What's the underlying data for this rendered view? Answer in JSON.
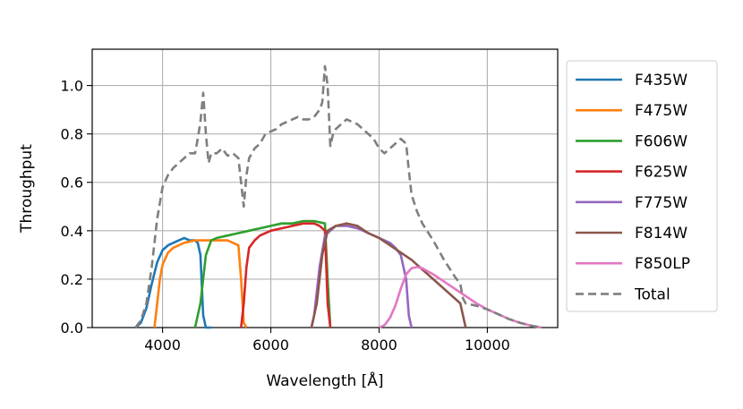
{
  "chart_data": {
    "type": "line",
    "title": "",
    "xlabel": "Wavelength [Å]",
    "ylabel": "Throughput",
    "xlim": [
      2700,
      11300
    ],
    "ylim": [
      0.0,
      1.15
    ],
    "xticks": [
      4000,
      6000,
      8000,
      10000
    ],
    "xtick_labels": [
      "4000",
      "6000",
      "8000",
      "10000"
    ],
    "yticks": [
      0.0,
      0.2,
      0.4,
      0.6,
      0.8,
      1.0
    ],
    "ytick_labels": [
      "0.0",
      "0.2",
      "0.4",
      "0.6",
      "0.8",
      "1.0"
    ],
    "grid": true,
    "legend_position": "right",
    "series": [
      {
        "name": "F435W",
        "color": "#1f77b4",
        "style": "solid",
        "x": [
          3500,
          3600,
          3700,
          3800,
          3900,
          4000,
          4100,
          4200,
          4300,
          4400,
          4500,
          4600,
          4650,
          4700,
          4750,
          4800,
          4900
        ],
        "y": [
          0.0,
          0.02,
          0.08,
          0.18,
          0.27,
          0.32,
          0.34,
          0.35,
          0.36,
          0.37,
          0.36,
          0.36,
          0.35,
          0.3,
          0.05,
          0.0,
          0.0
        ]
      },
      {
        "name": "F475W",
        "color": "#ff7f0e",
        "style": "solid",
        "x": [
          3850,
          3900,
          3950,
          4000,
          4100,
          4200,
          4400,
          4600,
          4800,
          5000,
          5200,
          5300,
          5400,
          5450,
          5500,
          5550
        ],
        "y": [
          0.0,
          0.1,
          0.2,
          0.26,
          0.31,
          0.33,
          0.35,
          0.36,
          0.36,
          0.36,
          0.36,
          0.35,
          0.34,
          0.2,
          0.02,
          0.0
        ]
      },
      {
        "name": "F606W",
        "color": "#2ca02c",
        "style": "solid",
        "x": [
          4600,
          4700,
          4800,
          4900,
          5000,
          5200,
          5400,
          5600,
          5800,
          6000,
          6200,
          6400,
          6600,
          6800,
          7000,
          7050,
          7100
        ],
        "y": [
          0.0,
          0.1,
          0.3,
          0.36,
          0.37,
          0.38,
          0.39,
          0.4,
          0.41,
          0.42,
          0.43,
          0.43,
          0.44,
          0.44,
          0.43,
          0.2,
          0.0
        ]
      },
      {
        "name": "F625W",
        "color": "#d62728",
        "style": "solid",
        "x": [
          5450,
          5500,
          5550,
          5600,
          5700,
          5800,
          6000,
          6200,
          6400,
          6600,
          6800,
          6900,
          7000,
          7050,
          7100
        ],
        "y": [
          0.0,
          0.1,
          0.25,
          0.33,
          0.36,
          0.38,
          0.4,
          0.41,
          0.42,
          0.43,
          0.43,
          0.42,
          0.4,
          0.1,
          0.0
        ]
      },
      {
        "name": "F775W",
        "color": "#9467bd",
        "style": "solid",
        "x": [
          6750,
          6800,
          6900,
          7000,
          7200,
          7400,
          7600,
          7800,
          8000,
          8200,
          8300,
          8400,
          8500,
          8550,
          8600
        ],
        "y": [
          0.0,
          0.05,
          0.25,
          0.38,
          0.42,
          0.42,
          0.41,
          0.39,
          0.37,
          0.35,
          0.33,
          0.3,
          0.2,
          0.05,
          0.0
        ]
      },
      {
        "name": "F814W",
        "color": "#8c564b",
        "style": "solid",
        "x": [
          6750,
          6850,
          6950,
          7050,
          7200,
          7400,
          7600,
          7800,
          8000,
          8200,
          8400,
          8600,
          8800,
          9000,
          9200,
          9400,
          9500,
          9550,
          9600
        ],
        "y": [
          0.0,
          0.1,
          0.3,
          0.4,
          0.42,
          0.43,
          0.42,
          0.39,
          0.37,
          0.34,
          0.31,
          0.28,
          0.24,
          0.2,
          0.16,
          0.12,
          0.1,
          0.05,
          0.0
        ]
      },
      {
        "name": "F850LP",
        "color": "#e377c2",
        "style": "solid",
        "x": [
          8000,
          8100,
          8200,
          8300,
          8400,
          8500,
          8600,
          8700,
          8800,
          9000,
          9200,
          9400,
          9600,
          9800,
          10000,
          10200,
          10400,
          10600,
          10800,
          11000
        ],
        "y": [
          0.0,
          0.01,
          0.04,
          0.09,
          0.16,
          0.22,
          0.245,
          0.25,
          0.245,
          0.22,
          0.19,
          0.16,
          0.13,
          0.1,
          0.075,
          0.055,
          0.035,
          0.02,
          0.008,
          0.0
        ]
      },
      {
        "name": "Total",
        "color": "#7f7f7f",
        "style": "dashed",
        "x": [
          3500,
          3600,
          3700,
          3800,
          3900,
          4000,
          4100,
          4200,
          4300,
          4400,
          4500,
          4600,
          4650,
          4700,
          4750,
          4800,
          4850,
          4900,
          5000,
          5100,
          5200,
          5300,
          5400,
          5450,
          5500,
          5550,
          5600,
          5700,
          5800,
          5900,
          6000,
          6100,
          6200,
          6300,
          6400,
          6500,
          6600,
          6700,
          6800,
          6900,
          6950,
          7000,
          7050,
          7100,
          7150,
          7200,
          7300,
          7400,
          7500,
          7600,
          7700,
          7800,
          7900,
          8000,
          8100,
          8200,
          8300,
          8400,
          8500,
          8550,
          8600,
          8700,
          8800,
          9000,
          9200,
          9400,
          9500,
          9550,
          9600,
          9800,
          10000,
          10200,
          10400,
          10600,
          10800,
          11000
        ],
        "y": [
          0.0,
          0.03,
          0.1,
          0.25,
          0.45,
          0.58,
          0.63,
          0.66,
          0.68,
          0.7,
          0.72,
          0.72,
          0.78,
          0.85,
          0.97,
          0.8,
          0.68,
          0.72,
          0.72,
          0.74,
          0.71,
          0.72,
          0.7,
          0.6,
          0.5,
          0.63,
          0.7,
          0.74,
          0.76,
          0.8,
          0.81,
          0.82,
          0.84,
          0.85,
          0.86,
          0.87,
          0.86,
          0.86,
          0.87,
          0.9,
          0.93,
          1.08,
          1.0,
          0.75,
          0.8,
          0.82,
          0.84,
          0.86,
          0.85,
          0.84,
          0.82,
          0.8,
          0.78,
          0.74,
          0.72,
          0.74,
          0.76,
          0.78,
          0.76,
          0.65,
          0.55,
          0.48,
          0.43,
          0.36,
          0.28,
          0.21,
          0.18,
          0.12,
          0.1,
          0.09,
          0.075,
          0.055,
          0.035,
          0.02,
          0.008,
          0.0
        ]
      }
    ]
  }
}
